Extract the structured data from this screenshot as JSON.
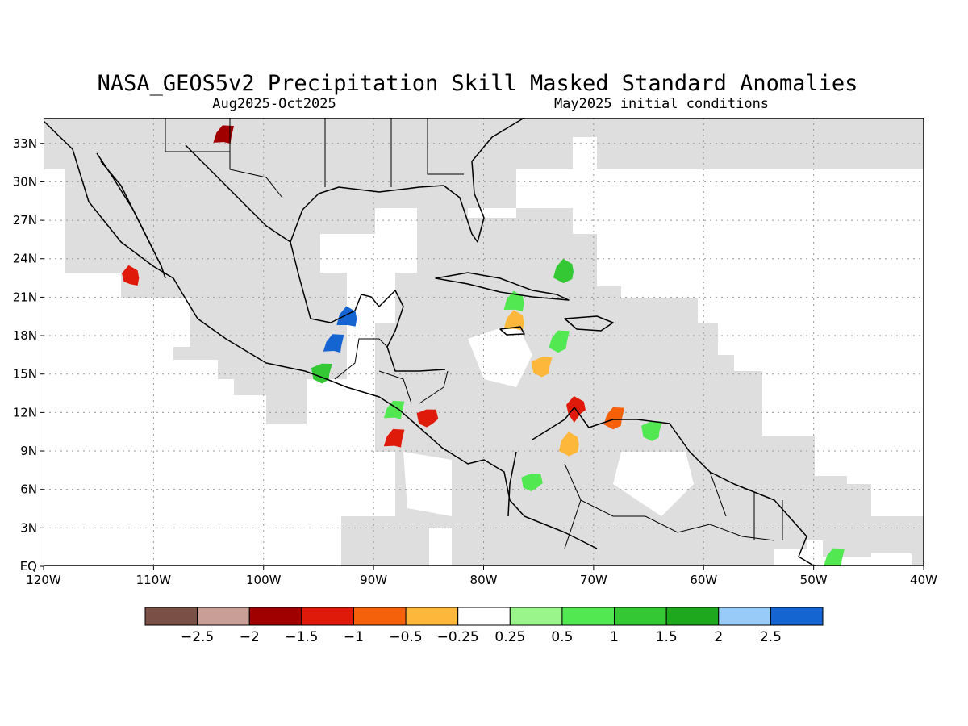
{
  "header": {
    "title": "NASA_GEOS5v2 Precipitation Skill Masked Standard Anomalies",
    "period": "Aug2025-Oct2025",
    "init": "May2025 initial conditions"
  },
  "map": {
    "lon_range": [
      -120,
      -40
    ],
    "lat_range": [
      0,
      35
    ],
    "lon_labels": [
      "120W",
      "110W",
      "100W",
      "90W",
      "80W",
      "70W",
      "60W",
      "50W",
      "40W"
    ],
    "lat_labels": [
      "EQ",
      "3N",
      "6N",
      "9N",
      "12N",
      "15N",
      "18N",
      "21N",
      "24N",
      "27N",
      "30N",
      "33N"
    ],
    "colors": {
      "background": "#ffffff",
      "skill_mask": "#dedede",
      "coast": "#000000",
      "grid": "#999999"
    }
  },
  "colorbar": {
    "colors": [
      "#7a4f45",
      "#c89e97",
      "#a00000",
      "#e01a0a",
      "#f5610a",
      "#fdb83c",
      "#ffffff",
      "#9af58a",
      "#52e852",
      "#34c934",
      "#1ea81e",
      "#98cbf7",
      "#1464d2"
    ],
    "labels": [
      "-2.5",
      "-2",
      "-1.5",
      "-1",
      "-0.5",
      "-0.25",
      "0.25",
      "0.5",
      "1",
      "1.5",
      "2",
      "2.5"
    ]
  },
  "anomalies": [
    {
      "lon": -112,
      "lat": 22.5,
      "value": -1.2
    },
    {
      "lon": -103.5,
      "lat": 33.5,
      "value": -1.6
    },
    {
      "lon": -93.5,
      "lat": 17.2,
      "value": 2.6
    },
    {
      "lon": -92.2,
      "lat": 19.3,
      "value": 2.6
    },
    {
      "lon": -94.5,
      "lat": 15,
      "value": 1.2
    },
    {
      "lon": -88,
      "lat": 12,
      "value": 0.8
    },
    {
      "lon": -85,
      "lat": 11.5,
      "value": -1.2
    },
    {
      "lon": -88,
      "lat": 9.8,
      "value": -1.1
    },
    {
      "lon": -77,
      "lat": 19,
      "value": -0.4
    },
    {
      "lon": -74.5,
      "lat": 15.5,
      "value": -0.3
    },
    {
      "lon": -73,
      "lat": 17.5,
      "value": 0.8
    },
    {
      "lon": -77,
      "lat": 20.5,
      "value": 0.6
    },
    {
      "lon": -72.5,
      "lat": 23,
      "value": 1.1
    },
    {
      "lon": -71.5,
      "lat": 12.2,
      "value": -1.4
    },
    {
      "lon": -68,
      "lat": 11.5,
      "value": -0.8
    },
    {
      "lon": -64.5,
      "lat": 10.5,
      "value": 0.9
    },
    {
      "lon": -72,
      "lat": 9.5,
      "value": -0.4
    },
    {
      "lon": -75.5,
      "lat": 6.5,
      "value": 0.7
    },
    {
      "lon": -48,
      "lat": 0.5,
      "value": 0.6
    }
  ]
}
